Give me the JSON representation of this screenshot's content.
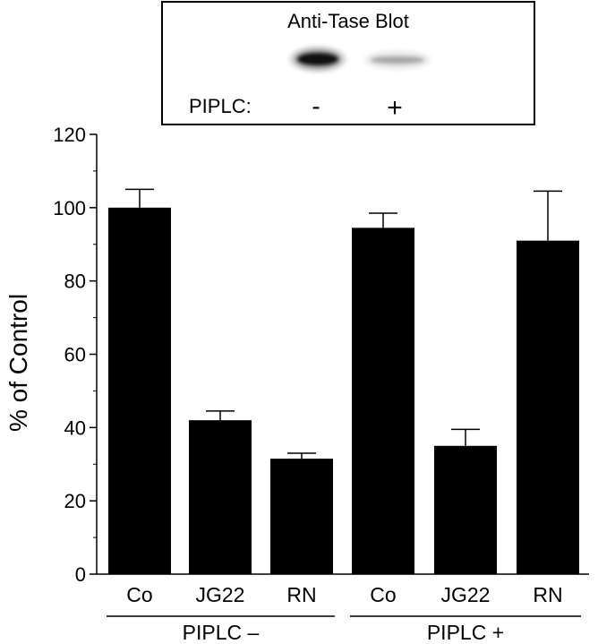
{
  "blot": {
    "title": "Anti-Tase Blot",
    "row_label": "PIPLC:",
    "lanes": [
      {
        "sign": "-",
        "band_intensity": 1.0
      },
      {
        "sign": "+",
        "band_intensity": 0.3
      }
    ]
  },
  "chart_data": {
    "type": "bar",
    "ylabel": "% of Control",
    "ylim": [
      0,
      120
    ],
    "yticks": [
      0,
      20,
      40,
      60,
      80,
      100,
      120
    ],
    "categories": [
      "Co",
      "JG22",
      "RN",
      "Co",
      "JG22",
      "RN"
    ],
    "values": [
      100,
      42,
      31.5,
      94.5,
      35,
      91
    ],
    "errors": [
      5,
      2.5,
      1.5,
      4,
      4.5,
      13.5
    ],
    "bar_color": "#000000",
    "groups": [
      {
        "label": "PIPLC –",
        "start": 0,
        "end": 2
      },
      {
        "label": "PIPLC +",
        "start": 3,
        "end": 5
      }
    ]
  }
}
